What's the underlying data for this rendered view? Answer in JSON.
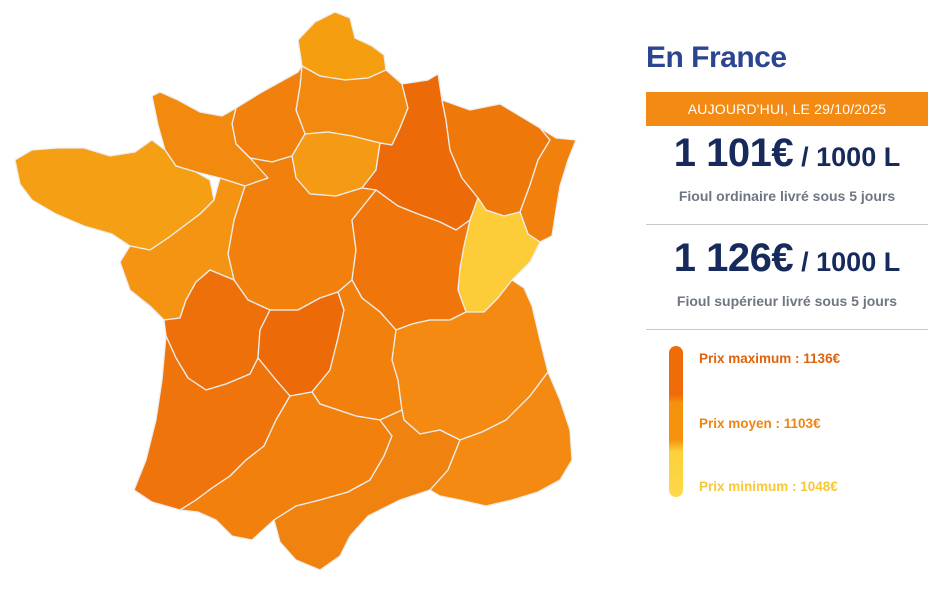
{
  "panel": {
    "title": "En France",
    "date_banner": "AUJOURD'HUI, LE 29/10/2025",
    "prices": [
      {
        "amount": "1 101€",
        "unit": "/ 1000 L",
        "description": "Fioul ordinaire livré sous 5 jours"
      },
      {
        "amount": "1 126€",
        "unit": "/ 1000 L",
        "description": "Fioul supérieur livré sous 5 jours"
      }
    ]
  },
  "legend": {
    "max_label": "Prix maximum : 1136€",
    "avg_label": "Prix moyen : 1103€",
    "min_label": "Prix minimum : 1048€",
    "colors": {
      "max": "#ef6b0a",
      "avg": "#f5920c",
      "min": "#fdd849"
    }
  },
  "map": {
    "border_color": "#ededed",
    "region_colors": {
      "nord": "#f59f10",
      "picardie": "#f28a0f",
      "haute-normandie": "#f2800d",
      "basse-normandie": "#f28a0f",
      "bretagne": "#f59f14",
      "ile-de-france": "#f59a14",
      "champagne": "#ec6a08",
      "lorraine": "#ef780a",
      "alsace": "#f2800d",
      "franche-comte": "#fccd38",
      "centre": "#f2800d",
      "pays-de-la-loire": "#f59412",
      "bourgogne": "#f0760c",
      "poitou-charentes": "#ee700b",
      "limousin": "#ec6a08",
      "auvergne": "#f2800d",
      "rhone-alpes": "#f58a12",
      "aquitaine": "#f0740c",
      "midi-pyrenees": "#f2800d",
      "languedoc": "#f08210",
      "paca": "#f58a12",
      "corse": "#f0760c"
    }
  }
}
